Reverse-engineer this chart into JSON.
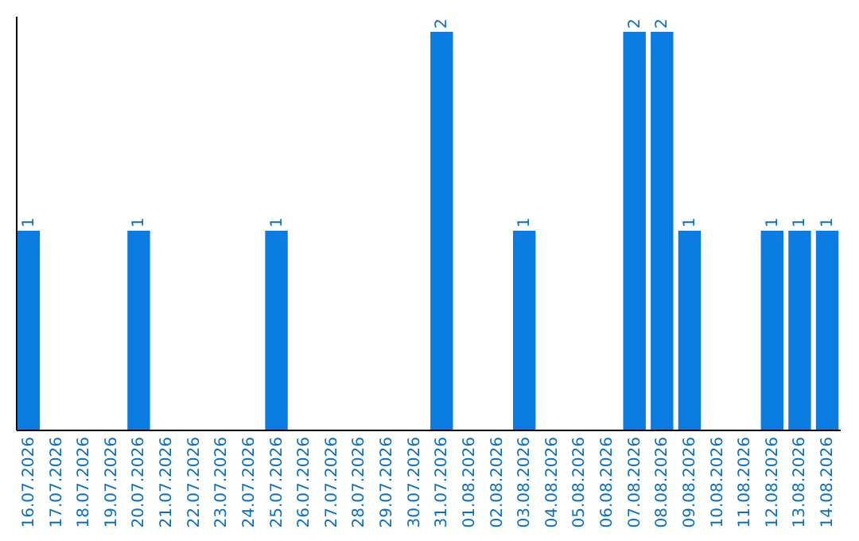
{
  "chart_data": {
    "type": "bar",
    "categories": [
      "16.07.2026",
      "17.07.2026",
      "18.07.2026",
      "19.07.2026",
      "20.07.2026",
      "21.07.2026",
      "22.07.2026",
      "23.07.2026",
      "24.07.2026",
      "25.07.2026",
      "26.07.2026",
      "27.07.2026",
      "28.07.2026",
      "29.07.2026",
      "30.07.2026",
      "31.07.2026",
      "01.08.2026",
      "02.08.2026",
      "03.08.2026",
      "04.08.2026",
      "05.08.2026",
      "06.08.2026",
      "07.08.2026",
      "08.08.2026",
      "09.08.2026",
      "10.08.2026",
      "11.08.2026",
      "12.08.2026",
      "13.08.2026",
      "14.08.2026"
    ],
    "values": [
      1,
      0,
      0,
      0,
      1,
      0,
      0,
      0,
      0,
      1,
      0,
      0,
      0,
      0,
      0,
      2,
      0,
      0,
      1,
      0,
      0,
      0,
      2,
      2,
      1,
      0,
      0,
      1,
      1,
      1
    ],
    "value_labels": [
      "1",
      null,
      null,
      null,
      "1",
      null,
      null,
      null,
      null,
      "1",
      null,
      null,
      null,
      null,
      null,
      "2",
      null,
      null,
      "1",
      null,
      null,
      null,
      "2",
      "2",
      "1",
      null,
      null,
      "1",
      "1",
      "1"
    ],
    "color": "#0a7be0",
    "ylim": [
      0,
      2.08
    ],
    "tick_labels": "x",
    "grid": false
  }
}
